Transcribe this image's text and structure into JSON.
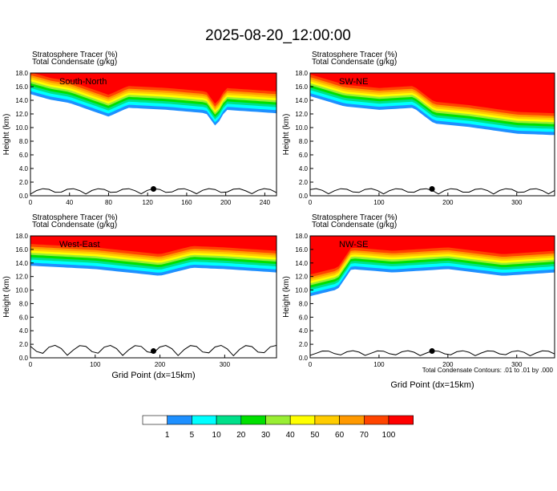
{
  "title": "2025-08-20_12:00:00",
  "panels": [
    {
      "id": "sn",
      "label": "South-North",
      "var1": "Stratosphere Tracer   (%)",
      "var2": "Total Condensate   (g/kg)",
      "xticks": [
        "0",
        "40",
        "80",
        "120",
        "160",
        "200",
        "240"
      ],
      "xmax": 252,
      "marker": 126,
      "xlabel": ""
    },
    {
      "id": "swne",
      "label": "SW-NE",
      "var1": "Stratosphere Tracer   (%)",
      "var2": "Total Condensate   (g/kg)",
      "xticks": [
        "0",
        "100",
        "200",
        "300"
      ],
      "xmax": 355,
      "marker": 177,
      "xlabel": ""
    },
    {
      "id": "we",
      "label": "West-East",
      "var1": "Stratosphere Tracer   (%)",
      "var2": "Total Condensate   (g/kg)",
      "xticks": [
        "0",
        "100",
        "200",
        "300"
      ],
      "xmax": 380,
      "marker": 190,
      "xlabel": "Grid Point (dx=15km)"
    },
    {
      "id": "nwse",
      "label": "NW-SE",
      "var1": "Stratosphere Tracer   (%)",
      "var2": "Total Condensate   (g/kg)",
      "xticks": [
        "0",
        "100",
        "200",
        "300"
      ],
      "xmax": 355,
      "marker": 177,
      "xlabel": "Grid Point (dx=15km)"
    }
  ],
  "ylabel": "Height (km)",
  "yticks": [
    "0.0",
    "2.0",
    "4.0",
    "6.0",
    "8.0",
    "10.0",
    "12.0",
    "14.0",
    "16.0",
    "18.0"
  ],
  "contour_note": "Total Condensate Contours: .01 to .01 by .000",
  "colorbar": {
    "colors": [
      "#ffffff",
      "#1e90ff",
      "#00ffff",
      "#00e08a",
      "#00e000",
      "#99ee33",
      "#ffff00",
      "#ffcc00",
      "#ff9900",
      "#ff4400",
      "#ff0000"
    ],
    "labels": [
      "1",
      "5",
      "10",
      "20",
      "30",
      "40",
      "50",
      "60",
      "70",
      "100"
    ]
  },
  "chart_data": [
    {
      "type": "heatmap",
      "panel": "South-North",
      "xlim": [
        0,
        252
      ],
      "ylim": [
        0,
        18
      ],
      "ylabel": "Height (km)",
      "tropopause_km": [
        [
          0,
          15.8
        ],
        [
          20,
          15
        ],
        [
          40,
          14.5
        ],
        [
          80,
          12.5
        ],
        [
          100,
          13.8
        ],
        [
          140,
          13.5
        ],
        [
          180,
          13
        ],
        [
          190,
          11
        ],
        [
          200,
          13.5
        ],
        [
          252,
          13
        ]
      ]
    },
    {
      "type": "heatmap",
      "panel": "SW-NE",
      "xlim": [
        0,
        355
      ],
      "ylim": [
        0,
        18
      ],
      "ylabel": "Height (km)",
      "tropopause_km": [
        [
          0,
          15.5
        ],
        [
          50,
          14
        ],
        [
          100,
          13.5
        ],
        [
          150,
          13.8
        ],
        [
          180,
          11.5
        ],
        [
          230,
          11
        ],
        [
          300,
          10
        ],
        [
          355,
          9.8
        ]
      ]
    },
    {
      "type": "heatmap",
      "panel": "West-East",
      "xlim": [
        0,
        380
      ],
      "ylim": [
        0,
        18
      ],
      "ylabel": "Height (km)",
      "xlabel": "Grid Point (dx=15km)",
      "tropopause_km": [
        [
          0,
          14.5
        ],
        [
          100,
          14
        ],
        [
          200,
          13
        ],
        [
          250,
          14.2
        ],
        [
          300,
          14
        ],
        [
          380,
          13.5
        ]
      ]
    },
    {
      "type": "heatmap",
      "panel": "NW-SE",
      "xlim": [
        0,
        355
      ],
      "ylim": [
        0,
        18
      ],
      "ylabel": "Height (km)",
      "xlabel": "Grid Point (dx=15km)",
      "tropopause_km": [
        [
          0,
          10
        ],
        [
          40,
          11
        ],
        [
          60,
          14
        ],
        [
          120,
          13.5
        ],
        [
          200,
          14
        ],
        [
          280,
          13
        ],
        [
          355,
          13.5
        ]
      ]
    }
  ]
}
